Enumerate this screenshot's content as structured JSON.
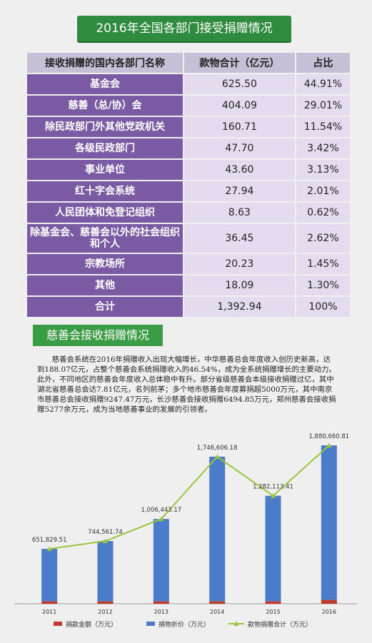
{
  "banner_title": "2016年全国各部门接受捐赠情况",
  "table": {
    "headers": [
      "接收捐赠的国内各部门名称",
      "款物合计（亿元）",
      "占比"
    ],
    "rows": [
      {
        "name": "基金会",
        "value": "625.50",
        "share": "44.91%"
      },
      {
        "name": "慈善（总/协）会",
        "value": "404.09",
        "share": "29.01%"
      },
      {
        "name": "除民政部门外其他党政机关",
        "value": "160.71",
        "share": "11.54%"
      },
      {
        "name": "各级民政部门",
        "value": "47.70",
        "share": "3.42%"
      },
      {
        "name": "事业单位",
        "value": "43.60",
        "share": "3.13%"
      },
      {
        "name": "红十字会系统",
        "value": "27.94",
        "share": "2.01%"
      },
      {
        "name": "人民团体和免登记组织",
        "value": "8.63",
        "share": "0.62%"
      },
      {
        "name": "除基金会、慈善会以外的社会组织和个人",
        "value": "36.45",
        "share": "2.62%"
      },
      {
        "name": "宗教场所",
        "value": "20.23",
        "share": "1.45%"
      },
      {
        "name": "其他",
        "value": "18.09",
        "share": "1.30%"
      },
      {
        "name": "合计",
        "value": "1,392.94",
        "share": "100%"
      }
    ]
  },
  "section_title": "慈善会接收捐赠情况",
  "paragraph": "慈善会系统在2016年捐赠收入出现大幅增长，中华慈善总会年度收入创历史新高，达到188.07亿元，占整个慈善会系统捐赠收入的46.54%，成为全系统捐赠增长的主要动力。此外，不同地区的慈善会年度收入总体稳中有升。部分省级慈善会本级接收捐赠过亿，其中湖北省慈善总会达7.81亿元，名列前茅；多个地市慈善会年度募捐超5000万元，其中南京市慈善总会接收捐赠9247.47万元，长沙慈善会接收捐赠6494.85万元，郑州慈善会接收捐赠5277余万元，成为当地慈善事业的发展的引领者。",
  "chart_data": {
    "type": "bar",
    "categories": [
      "2011",
      "2012",
      "2013",
      "2014",
      "2015",
      "2016"
    ],
    "series": [
      {
        "name": "捐款金额（万元）",
        "type": "bar",
        "stack": "a",
        "color": "#c0392b",
        "values": [
          28000,
          28000,
          28000,
          28000,
          28000,
          45000
        ]
      },
      {
        "name": "捐物折价（万元）",
        "type": "bar",
        "stack": "a",
        "color": "#4a7cc9",
        "values": [
          623829.51,
          716561.74,
          978443.17,
          1718606.18,
          1254113.41,
          1835660.81
        ]
      },
      {
        "name": "款物捐赠合计（万元）",
        "type": "line",
        "color": "#9bc53d",
        "values": [
          651829.51,
          744561.74,
          1006443.17,
          1746606.18,
          1282113.41,
          1880660.81
        ]
      }
    ],
    "data_labels": [
      "651,829.51",
      "744,561.74",
      "1,006,443.17",
      "1,746,606.18",
      "1,282,113.41",
      "1,880,660.81"
    ],
    "ylim": [
      0,
      2000000
    ],
    "legend": "bottom"
  }
}
